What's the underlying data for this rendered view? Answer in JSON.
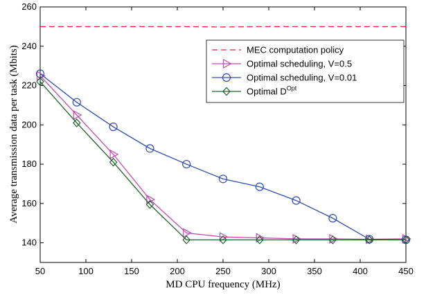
{
  "chart_data": {
    "type": "line",
    "xlabel": "MD CPU frequency (MHz)",
    "ylabel": "Average transmission data per task (Mbits)",
    "xlim": [
      50,
      450
    ],
    "ylim": [
      130,
      260
    ],
    "xticks": [
      50,
      100,
      150,
      200,
      250,
      300,
      350,
      400,
      450
    ],
    "yticks": [
      140,
      160,
      180,
      200,
      220,
      240,
      260
    ],
    "grid": false,
    "legend_position": "top-right",
    "x": [
      50,
      90,
      130,
      170,
      210,
      250,
      290,
      330,
      370,
      410,
      450
    ],
    "series": [
      {
        "name": "MEC computation policy",
        "color": "#e8232a",
        "style": "dashed",
        "marker": "none",
        "values": [
          250,
          250,
          250,
          250,
          250,
          249.8,
          250,
          250,
          250,
          250,
          250
        ]
      },
      {
        "name": "Optimal scheduling, V=0.5",
        "color": "#c24ab0",
        "style": "solid",
        "marker": "triangle-right",
        "values": [
          225,
          205,
          185,
          162,
          145,
          143,
          142.5,
          142,
          142,
          141.8,
          142
        ]
      },
      {
        "name": "Optimal scheduling, V=0.01",
        "color": "#2f4bb0",
        "style": "solid",
        "marker": "circle",
        "values": [
          226,
          211.5,
          199,
          188,
          180,
          172.5,
          168.5,
          161.5,
          152.5,
          141.8,
          141.5
        ]
      },
      {
        "name": "Optimal D",
        "name_sup": "Opt",
        "color": "#1f5f2a",
        "style": "solid",
        "marker": "diamond",
        "values": [
          222,
          201,
          181,
          159.5,
          141.5,
          141.5,
          141.5,
          141.5,
          141.5,
          141.5,
          141.5
        ]
      }
    ]
  }
}
